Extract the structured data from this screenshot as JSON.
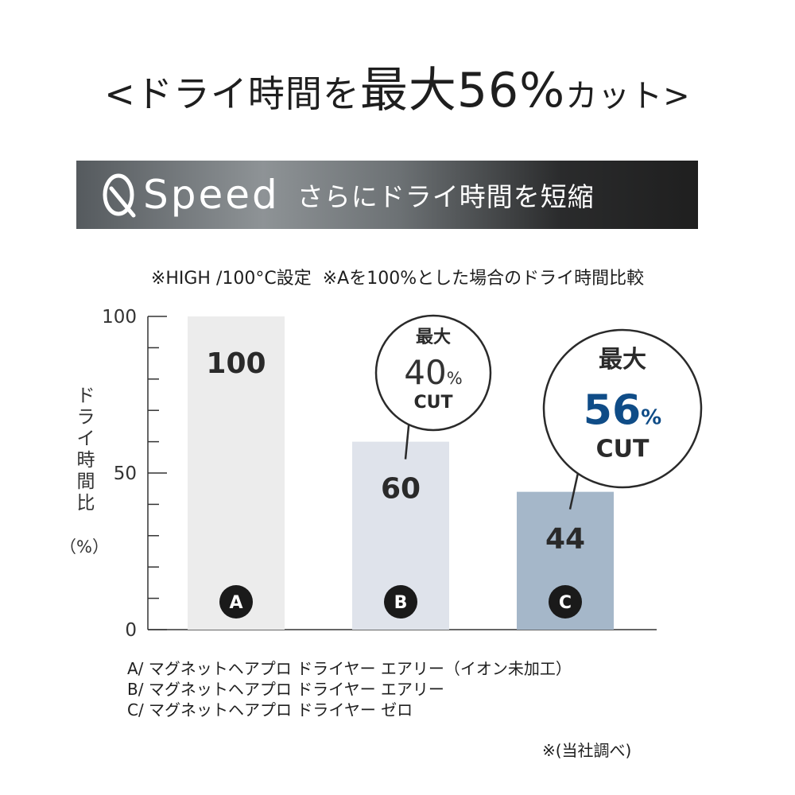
{
  "headline": {
    "pre": "<ドライ時間を",
    "emph": "最大56%",
    "post": "カット>"
  },
  "banner": {
    "brand": "Speed",
    "tagline": "さらにドライ時間を短縮"
  },
  "notes": [
    "※HIGH /100°C設定",
    "※Aを100%とした場合のドライ時間比較"
  ],
  "chart_data": {
    "type": "bar",
    "title": "",
    "ylabel": "ドライ時間比",
    "ylabel_unit": "（%）",
    "ylim": [
      0,
      100
    ],
    "yticks": [
      0,
      50,
      100
    ],
    "grid": false,
    "categories": [
      "A",
      "B",
      "C"
    ],
    "values": [
      100,
      60,
      44
    ],
    "bar_colors": [
      "#ececec",
      "#dfe3eb",
      "#a5b7c9"
    ],
    "callouts": [
      {
        "category": "B",
        "line1": "最大",
        "pct_number": "40",
        "pct_sign": "%",
        "line3": "CUT",
        "pct_color": "#333333"
      },
      {
        "category": "C",
        "line1": "最大",
        "pct_number": "56",
        "pct_sign": "%",
        "line3": "CUT",
        "pct_color": "#0f4c87"
      }
    ]
  },
  "legend": [
    "A/ マグネットヘアプロ ドライヤー エアリー（イオン未加工）",
    "B/ マグネットヘアプロ ドライヤー エアリー",
    "C/ マグネットヘアプロ ドライヤー ゼロ"
  ],
  "source": "※(当社調べ)"
}
